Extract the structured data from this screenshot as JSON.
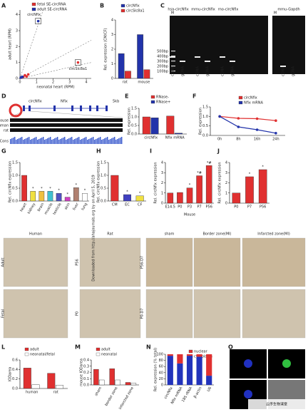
{
  "chart_data": [
    {
      "type": "scatter",
      "xlabel": "neonatal heart (RPM)",
      "ylabel": "adult heart (RPM)",
      "xlim": [
        0,
        4.3
      ],
      "ylim": [
        0,
        4.3
      ],
      "xticks": [
        0,
        1,
        2,
        3,
        4
      ],
      "yticks": [
        0,
        1,
        2,
        3,
        4
      ],
      "series": [
        {
          "name": "fetal SE-circRNA",
          "color": "#e03030",
          "x": [
            0.1,
            0.2,
            0.3,
            0.5,
            0.4,
            3.5
          ],
          "y": [
            0.05,
            0.1,
            0.2,
            0.25,
            0.12,
            1.0
          ]
        },
        {
          "name": "adult SE-circRNA",
          "color": "#2233aa",
          "x": [
            0.05,
            0.1,
            0.15,
            1.1
          ],
          "y": [
            0.05,
            0.08,
            0.1,
            3.6
          ]
        }
      ],
      "annotations": [
        "circNfix",
        "circSlc8a1"
      ]
    },
    {
      "type": "bar",
      "ylabel": "Rel. expression (CM/CF)",
      "categories": [
        "rat",
        "mouse"
      ],
      "ylim": [
        0,
        4
      ],
      "yticks": [
        0,
        1,
        2,
        3,
        4
      ],
      "series": [
        {
          "name": "circNfix",
          "color": "#2233aa",
          "values": [
            1.7,
            3.0
          ]
        },
        {
          "name": "circSlc8a1",
          "color": "#e03030",
          "values": [
            0.5,
            0.6
          ]
        }
      ]
    },
    {
      "type": "bar",
      "ylabel": "Rel. expression",
      "categories": [
        "circNfix",
        "Nfix mRNA"
      ],
      "ylim": [
        0,
        1.5
      ],
      "yticks": [
        {
          "value": 0,
          "label": "0.0"
        },
        {
          "value": 0.5,
          "label": "0.5"
        },
        {
          "value": 1,
          "label": "1.0"
        },
        {
          "value": 1.5,
          "label": "1.5"
        }
      ],
      "series": [
        {
          "name": "RNase-",
          "color": "#e03030",
          "values": [
            1.0,
            1.05
          ]
        },
        {
          "name": "RNase+",
          "color": "#2233aa",
          "values": [
            0.95,
            0.05
          ]
        }
      ]
    },
    {
      "type": "line",
      "ylabel": "Rel. expression",
      "categories": [
        "0h",
        "8h",
        "16h",
        "24h"
      ],
      "ylim": [
        0,
        1.5
      ],
      "yticks": [
        {
          "value": 0,
          "label": "0.0"
        },
        {
          "value": 0.5,
          "label": "0.5"
        },
        {
          "value": 1,
          "label": "1.0"
        },
        {
          "value": 1.5,
          "label": "1.5"
        }
      ],
      "series": [
        {
          "name": "circNfix",
          "color": "#e03030",
          "values": [
            1.0,
            0.9,
            0.88,
            0.78
          ]
        },
        {
          "name": "Nfix mRNA",
          "color": "#2233aa",
          "values": [
            1.0,
            0.45,
            0.3,
            0.12
          ]
        }
      ]
    },
    {
      "type": "bar",
      "ylabel": "Rel. circNfix expression",
      "categories": [
        "heart",
        "kidney",
        "brain",
        "muscle",
        "testicle",
        "skin",
        "liver",
        "lung"
      ],
      "values": [
        1.0,
        0.38,
        0.38,
        0.38,
        0.3,
        0.15,
        0.52,
        0.3
      ],
      "colors": [
        "#e03030",
        "#f0e040",
        "#f0c040",
        "#40c0d0",
        "#5050c0",
        "#d040c0",
        "#b08070",
        "#ffffff"
      ],
      "asterisks": [
        null,
        "*",
        "*",
        "*",
        "*",
        "*",
        "*",
        "*"
      ],
      "ylim": [
        0,
        1.5
      ],
      "yticks": [
        {
          "value": 0,
          "label": "0.0"
        },
        {
          "value": 0.5,
          "label": "0.5"
        },
        {
          "value": 1,
          "label": "1.0"
        },
        {
          "value": 1.5,
          "label": "1.5"
        }
      ]
    },
    {
      "type": "bar",
      "ylabel": "Rel. circNfix expression",
      "categories": [
        "CM",
        "EC",
        "CF"
      ],
      "values": [
        1.0,
        0.25,
        0.2
      ],
      "colors": [
        "#e03030",
        "#4040c0",
        "#f0e040"
      ],
      "asterisks": [
        null,
        "*",
        "*"
      ],
      "ylim": [
        0,
        1.5
      ],
      "yticks": [
        {
          "value": 0,
          "label": "0.0"
        },
        {
          "value": 0.5,
          "label": "0.5"
        },
        {
          "value": 1,
          "label": "1.0"
        },
        {
          "value": 1.5,
          "label": "1.5"
        }
      ]
    },
    {
      "type": "bar",
      "ylabel": "Rel. circNfix expression",
      "xlabel": "Mouse",
      "categories": [
        "E14.5",
        "P0",
        "P3",
        "P7",
        "P56"
      ],
      "values": [
        1.0,
        1.05,
        1.5,
        2.7,
        3.7
      ],
      "color": "#e03030",
      "asterisks": [
        null,
        null,
        "*",
        "*#",
        "*#"
      ],
      "ylim": [
        0,
        4
      ],
      "yticks": [
        0,
        1,
        2,
        3,
        4
      ]
    },
    {
      "type": "bar",
      "ylabel": "Rel. circNfix expression",
      "categories": [
        "P0",
        "P7",
        "P56"
      ],
      "values": [
        1.0,
        2.6,
        3.3
      ],
      "color": "#e03030",
      "asterisks": [
        null,
        "*",
        "*"
      ],
      "ylim": [
        0,
        4
      ],
      "yticks": [
        0,
        1,
        2,
        3,
        4
      ]
    },
    {
      "type": "bar",
      "ylabel": "IODarea",
      "categories": [
        "human",
        "rat"
      ],
      "ylim": [
        0,
        0.6
      ],
      "yticks": [
        {
          "value": 0,
          "label": "0.0"
        },
        {
          "value": 0.2,
          "label": "0.2"
        },
        {
          "value": 0.4,
          "label": "0.4"
        },
        {
          "value": 0.6,
          "label": "0.6"
        }
      ],
      "series": [
        {
          "name": "adult",
          "color": "#e03030",
          "values": [
            0.43,
            0.32
          ]
        },
        {
          "name": "neonatal/fetal",
          "color": "#ffffff",
          "values": [
            0.08,
            0.07
          ]
        }
      ]
    },
    {
      "type": "bar",
      "ylabel": "mouse IODarea",
      "categories": [
        "sham",
        "border zone",
        "infarcted zone"
      ],
      "ylim": [
        0,
        0.4
      ],
      "yticks": [
        {
          "value": 0,
          "label": "0.0"
        },
        {
          "value": 0.1,
          "label": "0.1"
        },
        {
          "value": 0.2,
          "label": "0.2"
        },
        {
          "value": 0.3,
          "label": "0.3"
        },
        {
          "value": 0.4,
          "label": "0.4"
        }
      ],
      "series": [
        {
          "name": "adult",
          "color": "#e03030",
          "values": [
            0.25,
            0.26,
            0.04
          ]
        },
        {
          "name": "neonatal",
          "color": "#ffffff",
          "values": [
            0.08,
            0.08,
            0.03
          ]
        }
      ]
    },
    {
      "type": "bar",
      "stacked": true,
      "ylabel": "Rel. expression (% total)",
      "categories": [
        "circNfix",
        "Nfix mRNA",
        "18S rRNA",
        "β-actin",
        "U6"
      ],
      "ylim": [
        0,
        100
      ],
      "yticks": [
        0,
        20,
        40,
        60,
        80,
        100
      ],
      "series": [
        {
          "name": "nuclear",
          "color": "#e03030",
          "values": [
            5,
            30,
            5,
            8,
            70
          ]
        },
        {
          "name": "cytoplasm",
          "color": "#2233bb",
          "values": [
            95,
            70,
            95,
            92,
            30
          ]
        }
      ]
    }
  ],
  "figure": {
    "panels": [
      "A",
      "B",
      "C",
      "D",
      "E",
      "F",
      "G",
      "H",
      "I",
      "J",
      "L",
      "M",
      "N",
      "O"
    ],
    "gel": {
      "groups": [
        "hsa-circNfix",
        "mmu-circNfix",
        "rno-circNfix",
        "mmu-Gapdh"
      ],
      "marker": "M",
      "ladder": [
        "500bp",
        "400bp",
        "300bp",
        "200bp",
        "100bp"
      ],
      "lanes": [
        "cDNA",
        "gDNA"
      ]
    },
    "gene": {
      "circ": "circNfix",
      "gene": "Nfix",
      "scale": "5kb",
      "tracks": [
        "mouse",
        "human",
        "rat",
        "Cons"
      ]
    },
    "histology": {
      "groups": [
        "Human",
        "Rat",
        "sham",
        "Border zone(MI)",
        "Infarcted zone(MI)"
      ],
      "rows": [
        "Adult",
        "Fetal",
        "P56",
        "P0",
        "P56-D7",
        "P0-D7"
      ]
    },
    "side_note": "Downloaded from http://ahajournals.org by on April 5, 2019",
    "watermark": "云序生物课堂"
  }
}
